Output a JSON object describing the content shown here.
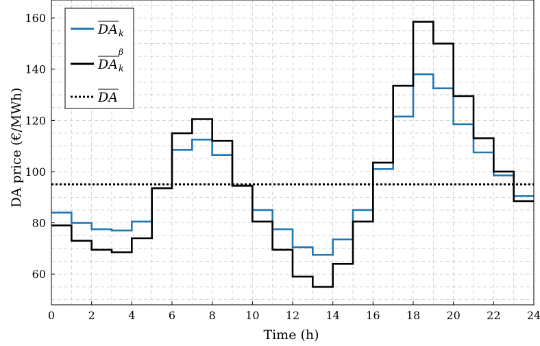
{
  "chart_data": {
    "type": "line",
    "step": true,
    "xlabel": "Time (h)",
    "ylabel": "DA price (€/MWh)",
    "xlim": [
      0,
      24
    ],
    "ylim": [
      48,
      167
    ],
    "xticks": [
      0,
      2,
      4,
      6,
      8,
      10,
      12,
      14,
      16,
      18,
      20,
      22,
      24
    ],
    "yticks": [
      60,
      80,
      100,
      120,
      140,
      160
    ],
    "grid": true,
    "legend_position": "top-left",
    "hours": [
      0,
      1,
      2,
      3,
      4,
      5,
      6,
      7,
      8,
      9,
      10,
      11,
      12,
      13,
      14,
      15,
      16,
      17,
      18,
      19,
      20,
      21,
      22,
      23,
      24
    ],
    "series": [
      {
        "name": "DA_k",
        "legend_base": "DA",
        "legend_sub": "k",
        "legend_sup": "",
        "color": "#1f77b4",
        "style": "solid",
        "values": [
          84,
          80,
          77.5,
          77,
          80.5,
          93.5,
          108.5,
          112.5,
          106.5,
          94.5,
          85,
          77.5,
          70.5,
          67.5,
          73.5,
          85,
          101,
          121.5,
          138,
          132.5,
          118.5,
          107.5,
          98.5,
          90.5
        ]
      },
      {
        "name": "DA_k^β",
        "legend_base": "DA",
        "legend_sub": "k",
        "legend_sup": "β",
        "color": "#000000",
        "style": "solid",
        "values": [
          79,
          73,
          69.5,
          68.5,
          74,
          93.5,
          115,
          120.5,
          112,
          94.5,
          80.5,
          69.5,
          59,
          55,
          64,
          80.5,
          103.5,
          133.5,
          158.5,
          150,
          129.5,
          113,
          100,
          88.5
        ]
      },
      {
        "name": "DA",
        "legend_base": "DA",
        "legend_sub": "",
        "legend_sup": "",
        "color": "#000000",
        "style": "dotted",
        "constant": 95
      }
    ]
  }
}
